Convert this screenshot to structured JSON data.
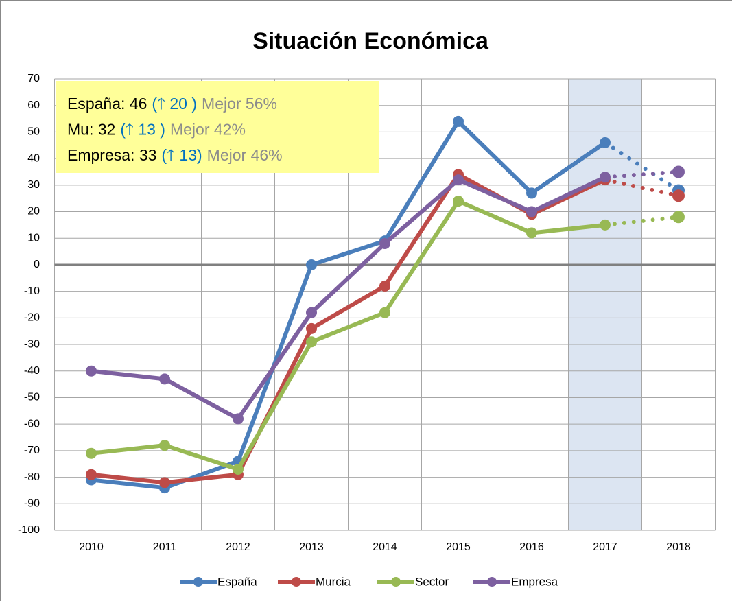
{
  "chart_data": {
    "type": "line",
    "title": "Situación Económica",
    "categories": [
      "2010",
      "2011",
      "2012",
      "2013",
      "2014",
      "2015",
      "2016",
      "2017",
      "2018"
    ],
    "series": [
      {
        "name": "España",
        "color": "#4a7ebb",
        "values": [
          -81,
          -84,
          -74,
          0,
          9,
          54,
          27,
          46,
          28
        ]
      },
      {
        "name": "Murcia",
        "color": "#be4b48",
        "values": [
          -79,
          -82,
          -79,
          -24,
          -8,
          34,
          19,
          32,
          26
        ]
      },
      {
        "name": "Sector",
        "color": "#98b954",
        "values": [
          -71,
          -68,
          -77,
          -29,
          -18,
          24,
          12,
          15,
          18
        ]
      },
      {
        "name": "Empresa",
        "color": "#7d60a0",
        "values": [
          -40,
          -43,
          -58,
          -18,
          8,
          32,
          20,
          33,
          35
        ]
      }
    ],
    "ylim": [
      -100,
      70
    ],
    "yticks": [
      -100,
      -90,
      -80,
      -70,
      -60,
      -50,
      -40,
      -30,
      -20,
      -10,
      0,
      10,
      20,
      30,
      40,
      50,
      60,
      70
    ],
    "grid": true,
    "dotted_last_segment": true,
    "highlight": "2017",
    "legend": "bottom",
    "annotations": [
      {
        "text": "España: 46",
        "change": "(🡑 20 )",
        "note": "Mejor 56%"
      },
      {
        "text": "Mu: 32",
        "change": "(🡑 13 )",
        "note": "Mejor 42%"
      },
      {
        "text": "Empresa: 33",
        "change": "(🡑 13)",
        "note": "Mejor 46%"
      }
    ]
  }
}
